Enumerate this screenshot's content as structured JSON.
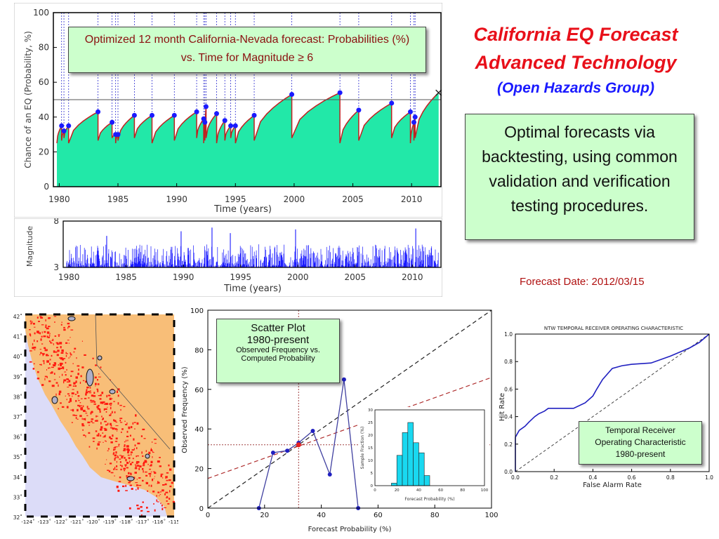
{
  "header": {
    "title_line1": "California EQ Forecast",
    "title_line2": "Advanced Technology",
    "subtitle": "(Open Hazards Group)",
    "callout": "Optimal forecasts via backtesting, using common validation and verification testing procedures.",
    "forecast_date": "Forecast Date: 2012/03/15",
    "colors": {
      "title": "#e8101a",
      "subtitle": "#1a1aff",
      "date": "#b01010",
      "box_fill": "#ccffcc"
    }
  },
  "panels": {
    "forecast": {
      "caption": "Optimized 12 month California-Nevada forecast: Probabilities (%)  vs.  Time for Magnitude ≥ 6",
      "ylabel": "Chance of an EQ (Probability, %)",
      "xlabel": "Time (years)",
      "yticks": [
        "0",
        "20",
        "40",
        "60",
        "80",
        "100"
      ],
      "xticks": [
        "1980",
        "1985",
        "1990",
        "1995",
        "2000",
        "2005",
        "2010"
      ],
      "colors": {
        "fill": "#22e8a8",
        "curve": "#c02020",
        "marker": "#1a1aff",
        "event": "#3030d0"
      }
    },
    "magnitude": {
      "ylabel": "Magnitude",
      "xlabel": "Time (years)",
      "yticks": [
        "3",
        "8"
      ],
      "xticks": [
        "1980",
        "1985",
        "1990",
        "1995",
        "2000",
        "2005",
        "2010"
      ],
      "color": "#1a1aff"
    },
    "map": {
      "lat_labels": [
        "42˚",
        "41˚",
        "40˚",
        "39˚",
        "38˚",
        "37˚",
        "36˚",
        "35˚",
        "34˚",
        "33˚",
        "32˚"
      ],
      "lon_labels": [
        "-124˚",
        "-123˚",
        "-122˚",
        "-121˚",
        "-120˚",
        "-119˚",
        "-118˚",
        "-117˚",
        "-116˚",
        "-115˚"
      ],
      "colors": {
        "land": "#f8be78",
        "sea": "#dcdcf8",
        "hot": "#ff1a10"
      }
    },
    "scatter": {
      "box_title1": "Scatter Plot",
      "box_title2": "1980-present",
      "box_sub1": "Observed Frequency vs.",
      "box_sub2": "Computed Probability",
      "xlabel": "Forecast Probability (%)",
      "ylabel": "Observed Frequency (%)",
      "xticks": [
        "0",
        "20",
        "40",
        "60",
        "80",
        "100"
      ],
      "yticks": [
        "0",
        "20",
        "40",
        "60",
        "80",
        "100"
      ],
      "inset_xlabel": "Forecast Probability (%)",
      "inset_ylabel": "Sample Fraction (%)",
      "inset_xticks": [
        "0",
        "20",
        "40",
        "60",
        "80",
        "100"
      ],
      "inset_yticks": [
        "0",
        "5",
        "10",
        "15",
        "20",
        "25",
        "30"
      ]
    },
    "roc": {
      "title": "NTW TEMPORAL RECEIVER OPERATING CHARACTERISTIC",
      "ylabel": "Hit  Rate",
      "xlabel": "False Alarm Rate",
      "xticks": [
        "0.0",
        "0.2",
        "0.4",
        "0.6",
        "0.8",
        "1.0"
      ],
      "yticks": [
        "0.0",
        "0.2",
        "0.4",
        "0.6",
        "0.8",
        "1.0"
      ],
      "box_line1": "Temporal Receiver",
      "box_line2": "Operating Characteristic",
      "box_line3": "1980-present"
    }
  },
  "chart_data": [
    {
      "type": "area",
      "title": "Optimized 12 month California-Nevada forecast: Probabilities (%)  vs.  Time for Magnitude ≥ 6",
      "xlabel": "Time (years)",
      "ylabel": "Chance of an EQ (Probability, %)",
      "xlim": [
        1979.5,
        2012.5
      ],
      "ylim": [
        0,
        100
      ],
      "reference_line": 50,
      "events": [
        1980.2,
        1980.4,
        1980.8,
        1983.3,
        1984.5,
        1984.8,
        1985.0,
        1986.4,
        1987.9,
        1989.8,
        1991.7,
        1992.3,
        1992.4,
        1992.5,
        1993.4,
        1994.1,
        1994.6,
        1995.0,
        1996.6,
        1999.8,
        2003.9,
        2005.5,
        2008.3,
        2009.9,
        2010.2,
        2010.3
      ],
      "peaks": [
        {
          "x": 1980.2,
          "y": 35
        },
        {
          "x": 1980.4,
          "y": 32
        },
        {
          "x": 1980.8,
          "y": 35
        },
        {
          "x": 1983.3,
          "y": 43
        },
        {
          "x": 1984.5,
          "y": 37
        },
        {
          "x": 1984.8,
          "y": 30
        },
        {
          "x": 1985.0,
          "y": 30
        },
        {
          "x": 1986.4,
          "y": 41
        },
        {
          "x": 1987.9,
          "y": 41
        },
        {
          "x": 1989.8,
          "y": 41
        },
        {
          "x": 1991.7,
          "y": 43
        },
        {
          "x": 1992.3,
          "y": 39
        },
        {
          "x": 1992.4,
          "y": 37
        },
        {
          "x": 1992.5,
          "y": 46
        },
        {
          "x": 1993.4,
          "y": 42
        },
        {
          "x": 1994.1,
          "y": 38
        },
        {
          "x": 1994.6,
          "y": 35
        },
        {
          "x": 1995.0,
          "y": 35
        },
        {
          "x": 1996.6,
          "y": 41
        },
        {
          "x": 1999.8,
          "y": 53
        },
        {
          "x": 2003.9,
          "y": 54
        },
        {
          "x": 2005.5,
          "y": 44
        },
        {
          "x": 2008.3,
          "y": 48
        },
        {
          "x": 2009.9,
          "y": 43
        },
        {
          "x": 2010.2,
          "y": 37
        },
        {
          "x": 2010.3,
          "y": 40
        }
      ],
      "floor": 25,
      "end": {
        "x": 2012.3,
        "y": 54
      }
    },
    {
      "type": "line",
      "title": "",
      "xlabel": "Time (years)",
      "ylabel": "Magnitude",
      "xlim": [
        1979.5,
        2012.5
      ],
      "ylim": [
        3,
        8
      ],
      "typical_range": [
        3,
        5.5
      ],
      "large_events": [
        {
          "x": 1992.5,
          "y": 7.3
        },
        {
          "x": 1989.8,
          "y": 6.9
        },
        {
          "x": 1999.8,
          "y": 7.1
        },
        {
          "x": 2010.3,
          "y": 7.2
        },
        {
          "x": 1983.3,
          "y": 6.4
        },
        {
          "x": 1994.1,
          "y": 6.7
        }
      ]
    },
    {
      "type": "scatter",
      "xlabel": "Forecast Probability (%)",
      "ylabel": "Observed Frequency (%)",
      "xlim": [
        0,
        100
      ],
      "ylim": [
        0,
        100
      ],
      "x": [
        18,
        23,
        28,
        32,
        37,
        43,
        48,
        53
      ],
      "y": [
        0,
        28,
        29,
        33,
        39,
        17,
        65,
        0
      ],
      "marker_point": {
        "x": 32,
        "y": 32
      },
      "diagonal": [
        [
          0,
          0
        ],
        [
          100,
          100
        ]
      ],
      "fit_line": [
        [
          0,
          15
        ],
        [
          100,
          66
        ]
      ],
      "reference": {
        "x": 32,
        "y": 32
      }
    },
    {
      "type": "bar",
      "xlabel": "Forecast Probability (%)",
      "ylabel": "Sample Fraction (%)",
      "xlim": [
        0,
        100
      ],
      "ylim": [
        0,
        30
      ],
      "categories": [
        "17.5",
        "22.5",
        "27.5",
        "32.5",
        "37.5",
        "42.5",
        "47.5"
      ],
      "values": [
        1,
        12,
        21,
        25,
        17,
        13,
        4
      ]
    },
    {
      "type": "line",
      "title": "NTW TEMPORAL RECEIVER OPERATING CHARACTERISTIC",
      "xlabel": "False Alarm Rate",
      "ylabel": "Hit  Rate",
      "xlim": [
        0,
        1
      ],
      "ylim": [
        0,
        1
      ],
      "x": [
        0.0,
        0.0,
        0.02,
        0.05,
        0.07,
        0.1,
        0.12,
        0.15,
        0.17,
        0.3,
        0.36,
        0.4,
        0.42,
        0.45,
        0.5,
        0.55,
        0.6,
        0.7,
        0.8,
        0.9,
        0.95,
        1.0
      ],
      "y": [
        0.0,
        0.25,
        0.3,
        0.33,
        0.36,
        0.4,
        0.42,
        0.44,
        0.46,
        0.46,
        0.5,
        0.55,
        0.6,
        0.67,
        0.75,
        0.77,
        0.78,
        0.79,
        0.84,
        0.9,
        0.94,
        1.0
      ],
      "diagonal": [
        [
          0,
          0
        ],
        [
          1,
          1
        ]
      ]
    }
  ]
}
